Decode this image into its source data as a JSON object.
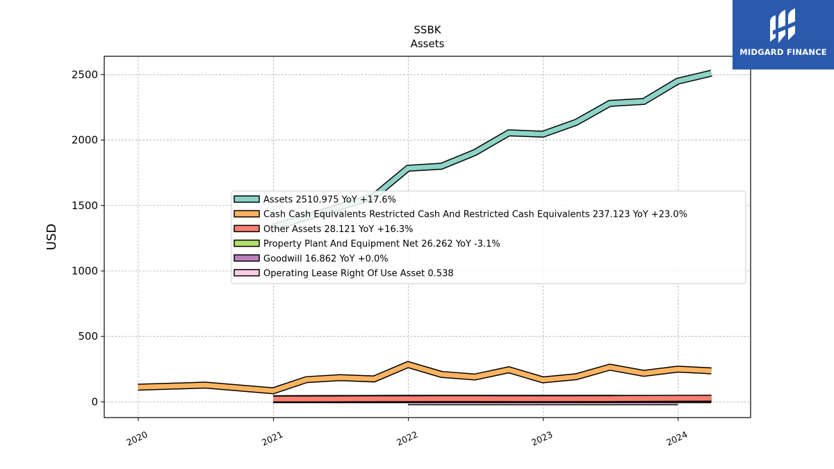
{
  "chart_data": {
    "type": "line",
    "title": "SSBK",
    "subtitle": "Assets",
    "ylabel": "USD",
    "xlabel": "",
    "xlim": [
      "2019-10-01",
      "2024-07-15"
    ],
    "ylim": [
      -120,
      2640
    ],
    "x_ticks": [
      "2020",
      "2021",
      "2022",
      "2023",
      "2024"
    ],
    "y_ticks": [
      0,
      500,
      1000,
      1500,
      2000,
      2500
    ],
    "grid": true,
    "legend_position": "center-right",
    "series": [
      {
        "name": "Assets",
        "legend_label": "Assets  2510.975 YoY +17.6%",
        "color": "#8dd3c7",
        "points": [
          [
            "2020-12-31",
            1335
          ],
          [
            "2021-03-31",
            1410
          ],
          [
            "2021-06-30",
            1490
          ],
          [
            "2021-09-30",
            1570
          ],
          [
            "2021-12-31",
            1785
          ],
          [
            "2022-03-31",
            1800
          ],
          [
            "2022-06-30",
            1905
          ],
          [
            "2022-09-30",
            2055
          ],
          [
            "2022-12-31",
            2045
          ],
          [
            "2023-03-31",
            2135
          ],
          [
            "2023-06-30",
            2280
          ],
          [
            "2023-09-30",
            2295
          ],
          [
            "2023-12-31",
            2450
          ],
          [
            "2024-03-31",
            2511
          ]
        ]
      },
      {
        "name": "Cash Cash Equivalents Restricted Cash And Restricted Cash Equivalents",
        "legend_label": "Cash Cash Equivalents Restricted Cash And Restricted Cash Equivalents  237.123 YoY +23.0%",
        "color": "#fdb462",
        "points": [
          [
            "2019-12-31",
            112
          ],
          [
            "2020-06-30",
            128
          ],
          [
            "2020-12-31",
            85
          ],
          [
            "2021-03-31",
            170
          ],
          [
            "2021-06-30",
            185
          ],
          [
            "2021-09-30",
            175
          ],
          [
            "2021-12-31",
            285
          ],
          [
            "2022-03-31",
            210
          ],
          [
            "2022-06-30",
            190
          ],
          [
            "2022-09-30",
            245
          ],
          [
            "2022-12-31",
            168
          ],
          [
            "2023-03-31",
            192
          ],
          [
            "2023-06-30",
            265
          ],
          [
            "2023-09-30",
            218
          ],
          [
            "2023-12-31",
            250
          ],
          [
            "2024-03-31",
            237
          ]
        ]
      },
      {
        "name": "Other Assets",
        "legend_label": "Other Assets  28.121 YoY +16.3%",
        "color": "#fb8072",
        "points": [
          [
            "2020-12-31",
            22
          ],
          [
            "2021-06-30",
            23
          ],
          [
            "2021-12-31",
            24
          ],
          [
            "2022-06-30",
            25
          ],
          [
            "2022-12-31",
            24
          ],
          [
            "2023-06-30",
            25
          ],
          [
            "2023-12-31",
            27
          ],
          [
            "2024-03-31",
            28
          ]
        ]
      },
      {
        "name": "Property Plant And Equipment Net",
        "legend_label": "Property Plant And Equipment Net  26.262 YoY -3.1%",
        "color": "#b3de69",
        "points": [
          [
            "2020-12-31",
            25
          ],
          [
            "2021-06-30",
            26
          ],
          [
            "2021-12-31",
            27
          ],
          [
            "2022-06-30",
            27
          ],
          [
            "2022-12-31",
            27
          ],
          [
            "2023-06-30",
            27
          ],
          [
            "2023-12-31",
            26
          ],
          [
            "2024-03-31",
            26
          ]
        ]
      },
      {
        "name": "Goodwill",
        "legend_label": "Goodwill  16.862 YoY +0.0%",
        "color": "#bc80bd",
        "points": [
          [
            "2020-12-31",
            16.862
          ],
          [
            "2024-03-31",
            16.862
          ]
        ]
      },
      {
        "name": "Operating Lease Right Of Use Asset",
        "legend_label": "Operating Lease Right Of Use Asset  0.538",
        "color": "#fccde5",
        "points": [
          [
            "2021-12-31",
            0.6
          ],
          [
            "2023-12-31",
            0.538
          ]
        ]
      }
    ]
  },
  "logo": {
    "text": "MIDGARD FINANCE",
    "background": "#2b5aad"
  }
}
